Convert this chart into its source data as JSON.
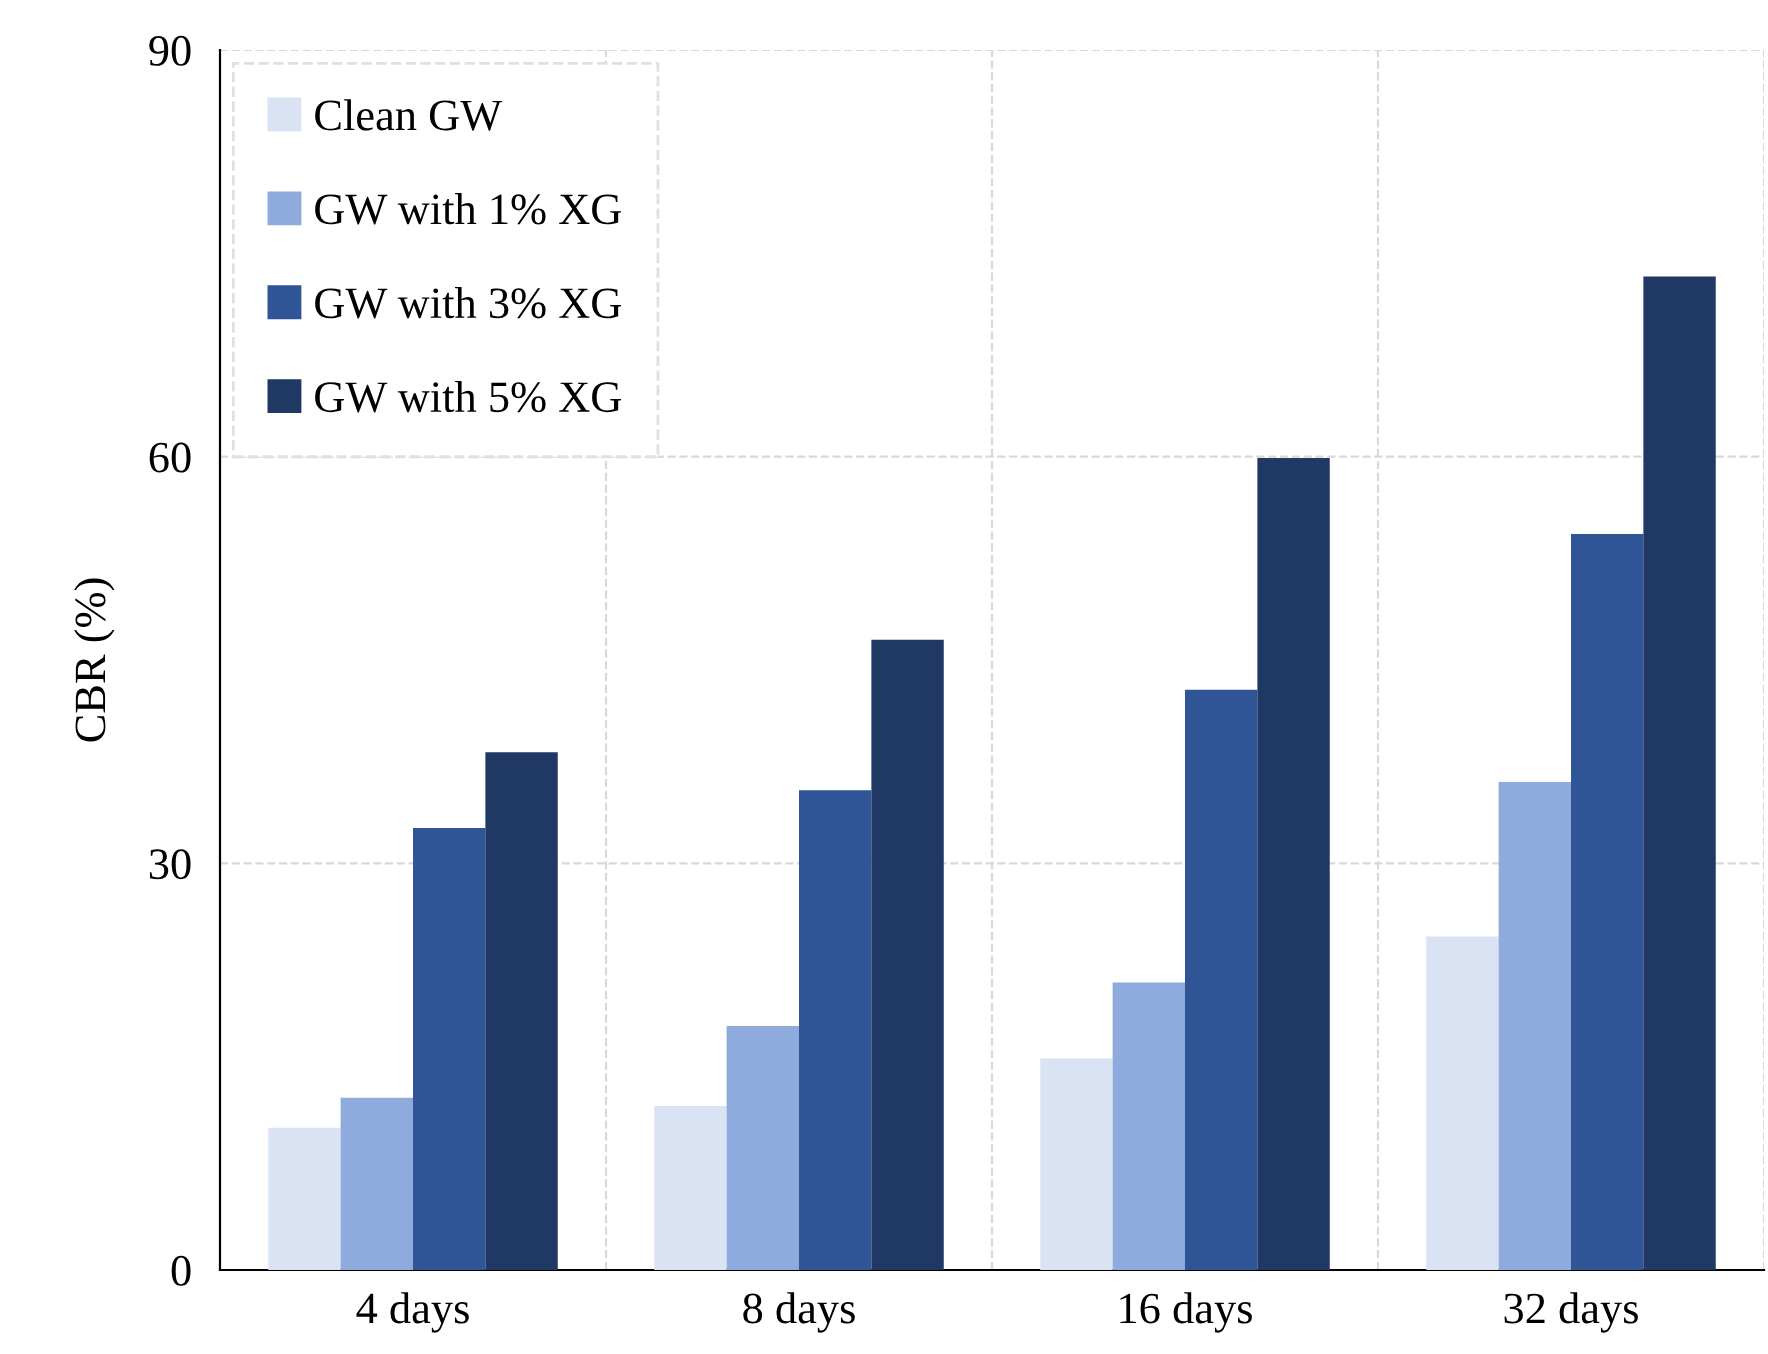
{
  "chart_data": {
    "type": "bar",
    "ylabel": "CBR (%)",
    "categories": [
      "4 days",
      "8 days",
      "16 days",
      "32 days"
    ],
    "series": [
      {
        "name": "Clean GW",
        "color": "#dae3f3",
        "values": [
          10.5,
          12.1,
          15.6,
          24.6
        ]
      },
      {
        "name": "GW with 1% XG",
        "color": "#8faadc",
        "values": [
          12.7,
          18.0,
          21.2,
          36.0
        ]
      },
      {
        "name": "GW with 3% XG",
        "color": "#2f5597",
        "values": [
          32.6,
          35.4,
          42.8,
          54.3
        ]
      },
      {
        "name": "GW with 5% XG",
        "color": "#203864",
        "values": [
          38.2,
          46.5,
          59.9,
          73.3
        ]
      }
    ],
    "ylim": [
      0,
      90
    ],
    "yticks": [
      0,
      30,
      60,
      90
    ],
    "grid": true,
    "legend": "top left"
  }
}
